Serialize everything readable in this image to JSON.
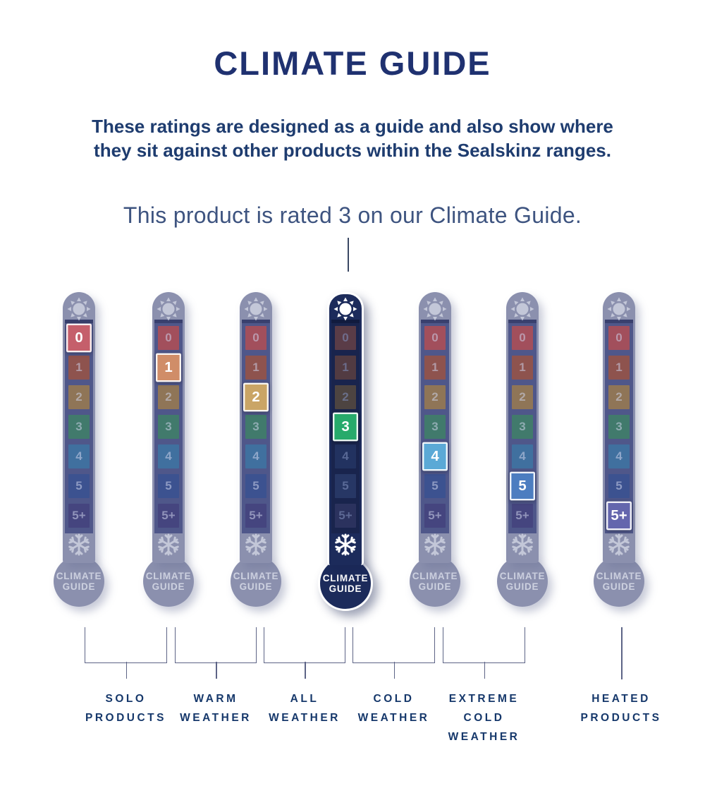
{
  "page": {
    "title": "CLIMATE GUIDE",
    "subtitle": "These ratings are designed as a guide and also show where\nthey sit against other products within the Sealskinz ranges.",
    "rated_text": "This product is rated 3 on our Climate Guide.",
    "rated_value": "3"
  },
  "levels": [
    "0",
    "1",
    "2",
    "3",
    "4",
    "5",
    "5+"
  ],
  "bulb_label": "CLIMATE\nGUIDE",
  "thermometers": [
    {
      "name": "rated-0",
      "variant": "muted",
      "rating_index": 0,
      "highlighted_level": "0"
    },
    {
      "name": "rated-1",
      "variant": "muted",
      "rating_index": 1,
      "highlighted_level": "1"
    },
    {
      "name": "rated-2",
      "variant": "muted",
      "rating_index": 2,
      "highlighted_level": "2"
    },
    {
      "name": "rated-3-current-product",
      "variant": "navy",
      "rating_index": 3,
      "highlighted_level": "3"
    },
    {
      "name": "rated-4",
      "variant": "muted",
      "rating_index": 4,
      "highlighted_level": "4"
    },
    {
      "name": "rated-5",
      "variant": "muted",
      "rating_index": 5,
      "highlighted_level": "5"
    },
    {
      "name": "rated-5plus",
      "variant": "muted",
      "rating_index": 6,
      "highlighted_level": "5+"
    }
  ],
  "categories": [
    {
      "label": "SOLO\nPRODUCTS"
    },
    {
      "label": "WARM\nWEATHER"
    },
    {
      "label": "ALL\nWEATHER"
    },
    {
      "label": "COLD\nWEATHER"
    },
    {
      "label": "EXTREME\nCOLD\nWEATHER"
    },
    {
      "label": "HEATED\nPRODUCTS"
    }
  ],
  "colors": {
    "background": "#ffffff",
    "title": "#1f3170",
    "subtitle": "#1e3c6f",
    "rated_text": "#3e5480",
    "pointer_line": "#3a4763",
    "bracket_line": "#5d6486",
    "category_label": "#16386b",
    "muted_body": "#8b90ae",
    "muted_track": "#4f578a",
    "muted_track_band": "#39406e",
    "muted_icon": "#c3c7d8",
    "muted_bulb_text": "#cdd1e0",
    "muted_number": "rgba(205,212,235,0.55)",
    "navy_body": "#1c2b5b",
    "navy_track": "#19244d",
    "navy_track_band": "#111b3e",
    "navy_icon": "#ffffff",
    "navy_bulb_text": "#ffffff",
    "navy_number": "rgba(125,140,185,0.6)",
    "highlight_border": "rgba(255,255,255,0.9)",
    "highlight_number": "#ffffff",
    "bright_squares": [
      "#c55f6b",
      "#d08d68",
      "#caa566",
      "#27aa6b",
      "#5ba9d6",
      "#4c7dc0",
      "#6466ad"
    ],
    "muted_squares": [
      "#a24f5c",
      "#8e534e",
      "#8f7557",
      "#417a6c",
      "#40709f",
      "#3c5290",
      "#45457f"
    ],
    "navy_muted_squares": [
      "#5a3c47",
      "#523b42",
      "#4d4441",
      "#27aa6b",
      "#223260",
      "#273765",
      "#2b325e"
    ]
  }
}
